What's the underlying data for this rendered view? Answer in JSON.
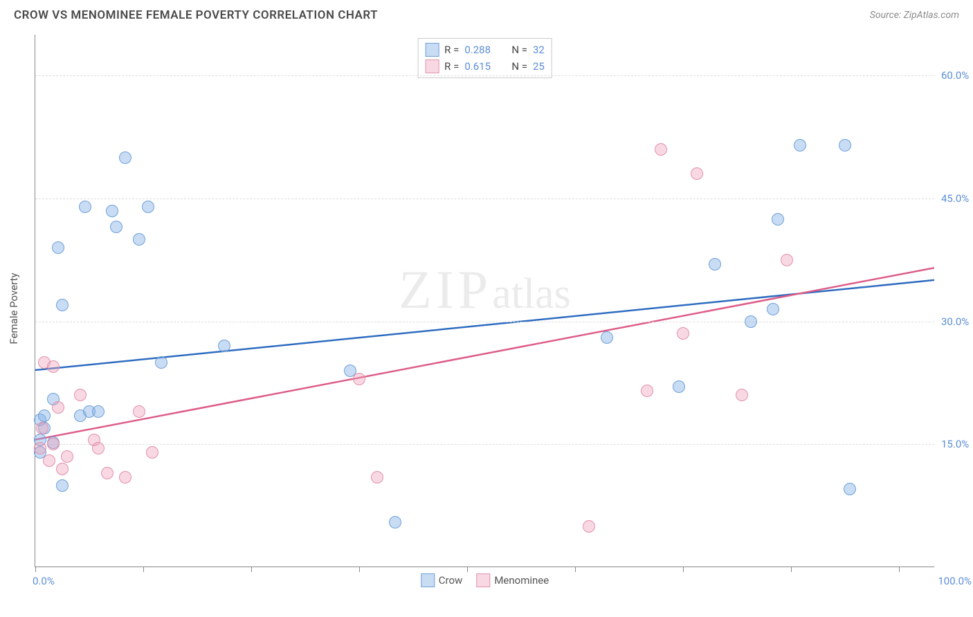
{
  "header": {
    "title": "CROW VS MENOMINEE FEMALE POVERTY CORRELATION CHART",
    "source": "Source: ZipAtlas.com"
  },
  "watermark": {
    "part1": "ZIP",
    "part2": "atlas"
  },
  "chart": {
    "type": "scatter",
    "ylabel": "Female Poverty",
    "xlim": [
      0,
      100
    ],
    "ylim": [
      0,
      65
    ],
    "xtick_positions": [
      0,
      12,
      24,
      36,
      48,
      60,
      72,
      84,
      96
    ],
    "xtick_labels": {
      "start": "0.0%",
      "end": "100.0%"
    },
    "ytick_positions": [
      15,
      30,
      45,
      60
    ],
    "ytick_labels": [
      "15.0%",
      "30.0%",
      "45.0%",
      "60.0%"
    ],
    "grid_color": "#dddddd",
    "axis_color": "#888888",
    "background_color": "#ffffff",
    "point_radius": 9,
    "series": [
      {
        "name": "Crow",
        "fill": "rgba(134,177,230,0.45)",
        "stroke": "#6f9fd8",
        "line_color": "#2d6cc0",
        "R": "0.288",
        "N": "32",
        "trend": {
          "x1": 0,
          "y1": 24.0,
          "x2": 100,
          "y2": 35.0
        },
        "points": [
          [
            0.5,
            14.0
          ],
          [
            0.5,
            15.5
          ],
          [
            0.5,
            18.0
          ],
          [
            1.0,
            18.5
          ],
          [
            1.0,
            17.0
          ],
          [
            2.0,
            20.5
          ],
          [
            2.0,
            15.2
          ],
          [
            2.5,
            39.0
          ],
          [
            3.0,
            32.0
          ],
          [
            3.0,
            10.0
          ],
          [
            5.0,
            18.5
          ],
          [
            5.5,
            44.0
          ],
          [
            6.0,
            19.0
          ],
          [
            7.0,
            19.0
          ],
          [
            8.5,
            43.5
          ],
          [
            9.0,
            41.5
          ],
          [
            10.0,
            50.0
          ],
          [
            11.5,
            40.0
          ],
          [
            12.5,
            44.0
          ],
          [
            14.0,
            25.0
          ],
          [
            21.0,
            27.0
          ],
          [
            35.0,
            24.0
          ],
          [
            40.0,
            5.5
          ],
          [
            63.5,
            28.0
          ],
          [
            71.5,
            22.0
          ],
          [
            75.5,
            37.0
          ],
          [
            79.5,
            30.0
          ],
          [
            82.0,
            31.5
          ],
          [
            82.5,
            42.5
          ],
          [
            85.0,
            51.5
          ],
          [
            90.0,
            51.5
          ],
          [
            90.5,
            9.5
          ]
        ]
      },
      {
        "name": "Menominee",
        "fill": "rgba(238,159,186,0.40)",
        "stroke": "#e38fab",
        "line_color": "#dd5c87",
        "R": "0.615",
        "N": "25",
        "trend": {
          "x1": 0,
          "y1": 15.5,
          "x2": 100,
          "y2": 36.5
        },
        "points": [
          [
            0.5,
            14.5
          ],
          [
            0.8,
            17.0
          ],
          [
            1.0,
            25.0
          ],
          [
            1.5,
            13.0
          ],
          [
            2.0,
            15.0
          ],
          [
            2.0,
            24.5
          ],
          [
            2.5,
            19.5
          ],
          [
            3.0,
            12.0
          ],
          [
            3.5,
            13.5
          ],
          [
            5.0,
            21.0
          ],
          [
            6.5,
            15.5
          ],
          [
            7.0,
            14.5
          ],
          [
            8.0,
            11.5
          ],
          [
            10.0,
            11.0
          ],
          [
            11.5,
            19.0
          ],
          [
            13.0,
            14.0
          ],
          [
            36.0,
            23.0
          ],
          [
            38.0,
            11.0
          ],
          [
            61.5,
            5.0
          ],
          [
            68.0,
            21.5
          ],
          [
            69.5,
            51.0
          ],
          [
            72.0,
            28.5
          ],
          [
            73.5,
            48.0
          ],
          [
            78.5,
            21.0
          ],
          [
            83.5,
            37.5
          ]
        ]
      }
    ],
    "legend_bottom": [
      {
        "label": "Crow",
        "fill": "rgba(134,177,230,0.45)",
        "stroke": "#6f9fd8"
      },
      {
        "label": "Menominee",
        "fill": "rgba(238,159,186,0.40)",
        "stroke": "#e38fab"
      }
    ]
  }
}
